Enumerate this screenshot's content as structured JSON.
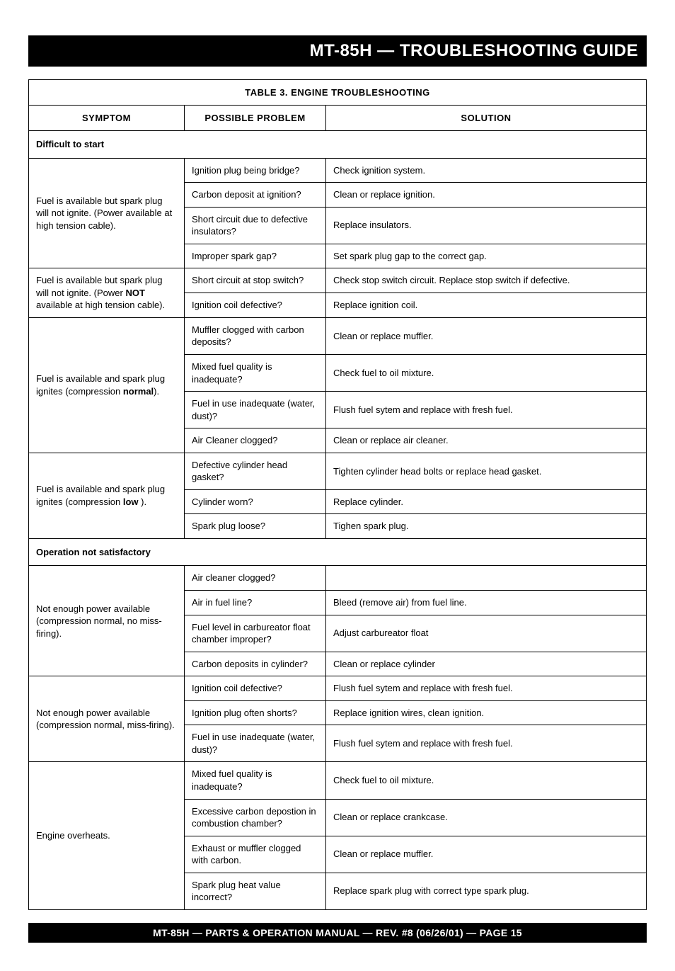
{
  "header": {
    "title": "MT-85H — TROUBLESHOOTING GUIDE"
  },
  "table": {
    "caption": "TABLE 3.  ENGINE TROUBLESHOOTING",
    "columns": {
      "symptom": "SYMPTOM",
      "problem": "POSSIBLE PROBLEM",
      "solution": "SOLUTION"
    },
    "column_widths": {
      "symptom": 220,
      "problem": 200,
      "solution": "auto"
    },
    "border_color": "#000000",
    "background_color": "#ffffff",
    "text_color": "#000000",
    "fontsize": 13,
    "sections": [
      {
        "heading": "Difficult to start",
        "groups": [
          {
            "symptom": "Fuel is available but spark plug will not ignite. (Power available at high tension cable).",
            "rows": [
              {
                "problem": "Ignition plug being bridge?",
                "solution": "Check ignition system."
              },
              {
                "problem": "Carbon deposit at ignition?",
                "solution": "Clean or replace ignition."
              },
              {
                "problem": "Short circuit due to defective insulators?",
                "solution": "Replace insulators."
              },
              {
                "problem": "Improper spark gap?",
                "solution": "Set spark plug gap to the correct gap."
              }
            ]
          },
          {
            "symptom_html": "Fuel is available but spark plug will not ignite. (Power <b>NOT</b> available at high tension cable).",
            "rows": [
              {
                "problem": "Short circuit at stop switch?",
                "solution": "Check stop switch circuit. Replace stop switch if defective."
              },
              {
                "problem": "Ignition coil defective?",
                "solution": "Replace ignition coil."
              }
            ]
          },
          {
            "symptom_html": "Fuel is available and spark plug ignites (compression <b>normal</b>).",
            "rows": [
              {
                "problem": "Muffler clogged with carbon deposits?",
                "solution": "Clean or replace muffler."
              },
              {
                "problem": "Mixed fuel quality is inadequate?",
                "solution": "Check fuel to oil mixture."
              },
              {
                "problem": "Fuel in use inadequate (water, dust)?",
                "solution": "Flush fuel sytem and replace with fresh fuel."
              },
              {
                "problem": "Air Cleaner clogged?",
                "solution": "Clean or replace air cleaner."
              }
            ]
          },
          {
            "symptom_html": "Fuel is available and spark plug ignites (compression <b>low</b> ).",
            "rows": [
              {
                "problem": "Defective cylinder head gasket?",
                "solution": "Tighten cylinder head bolts or replace head gasket."
              },
              {
                "problem": "Cylinder worn?",
                "solution": "Replace cylinder."
              },
              {
                "problem": "Spark plug loose?",
                "solution": "Tighen spark plug."
              }
            ]
          }
        ]
      },
      {
        "heading": "Operation not satisfactory",
        "groups": [
          {
            "symptom": "Not enough power available (compression normal, no miss-firing).",
            "rows": [
              {
                "problem": "Air cleaner clogged?",
                "solution": ""
              },
              {
                "problem": "Air in fuel line?",
                "solution": "Bleed (remove air) from fuel line."
              },
              {
                "problem": "Fuel level in carbureator float chamber improper?",
                "solution": "Adjust carbureator float"
              },
              {
                "problem": "Carbon deposits in cylinder?",
                "solution": "Clean or replace cylinder"
              }
            ]
          },
          {
            "symptom": "Not enough power available (compression normal, miss-firing).",
            "rows": [
              {
                "problem": "Ignition coil defective?",
                "solution": "Flush fuel sytem and replace with fresh fuel."
              },
              {
                "problem": "Ignition plug often shorts?",
                "solution": "Replace ignition wires, clean ignition."
              },
              {
                "problem": "Fuel in use inadequate (water, dust)?",
                "solution": "Flush fuel sytem and replace with fresh fuel."
              }
            ]
          },
          {
            "symptom": "Engine overheats.",
            "rows": [
              {
                "problem": "Mixed fuel quality is inadequate?",
                "solution": "Check fuel to oil mixture."
              },
              {
                "problem": "Excessive carbon depostion in combustion chamber?",
                "solution": "Clean or replace crankcase."
              },
              {
                "problem": "Exhaust or muffler clogged with carbon.",
                "solution": "Clean or replace muffler."
              },
              {
                "problem": "Spark plug heat value incorrect?",
                "solution": "Replace spark plug with correct type spark plug."
              }
            ]
          }
        ]
      }
    ]
  },
  "footer": {
    "text": "MT-85H — PARTS & OPERATION MANUAL — REV. #8 (06/26/01) — PAGE 15"
  }
}
